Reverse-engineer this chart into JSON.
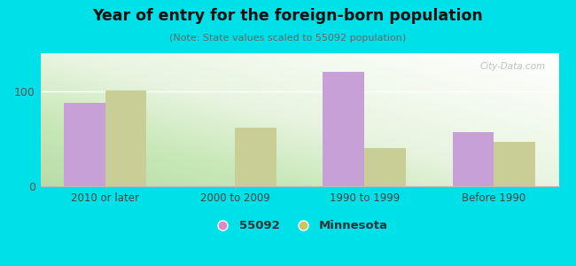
{
  "title": "Year of entry for the foreign-born population",
  "subtitle": "(Note: State values scaled to 55092 population)",
  "categories": [
    "2010 or later",
    "2000 to 2009",
    "1990 to 1999",
    "Before 1990"
  ],
  "values_55092": [
    88,
    0,
    120,
    57
  ],
  "values_minnesota": [
    101,
    62,
    40,
    47
  ],
  "color_55092": "#c8a0d8",
  "color_minnesota": "#c8ce96",
  "background_color": "#00e0e8",
  "ylim": [
    0,
    140
  ],
  "yticks": [
    0,
    100
  ],
  "bar_width": 0.32,
  "legend_color_55092": "#dd88cc",
  "legend_color_minnesota": "#c8c860",
  "watermark": "City-Data.com"
}
